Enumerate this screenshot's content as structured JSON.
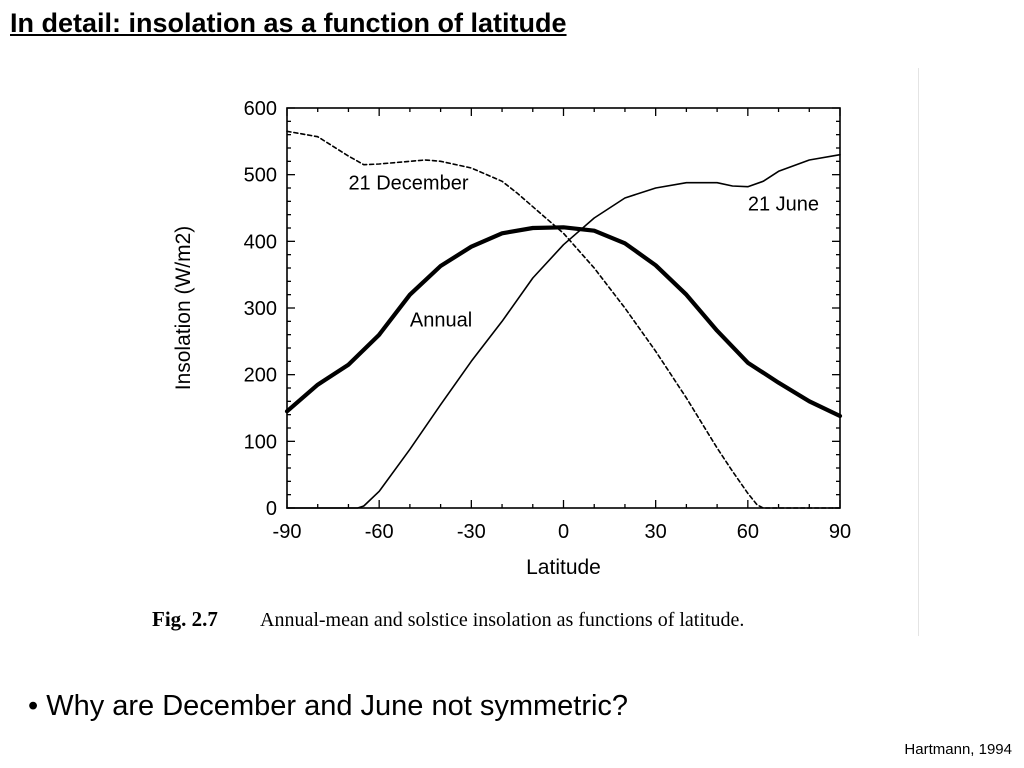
{
  "slide": {
    "title": "In detail: insolation as a function of latitude",
    "bullet": "• Why are December and June not symmetric?",
    "source": "Hartmann, 1994"
  },
  "figure": {
    "caption_label": "Fig. 2.7",
    "caption_text": "Annual-mean and solstice insolation as functions of latitude."
  },
  "chart_data": {
    "type": "line",
    "title": "",
    "xlabel": "Latitude",
    "ylabel": "Insolation (W/m2)",
    "xlim": [
      -90,
      90
    ],
    "ylim": [
      0,
      600
    ],
    "xticks": [
      -90,
      -60,
      -30,
      0,
      30,
      60,
      90
    ],
    "yticks": [
      0,
      100,
      200,
      300,
      400,
      500,
      600
    ],
    "grid": false,
    "legend": "none",
    "series": [
      {
        "name": "21 December",
        "style": "dashed",
        "x": [
          -90,
          -80,
          -70,
          -65,
          -60,
          -50,
          -45,
          -40,
          -30,
          -20,
          -15,
          -10,
          0,
          10,
          20,
          30,
          40,
          50,
          55,
          60,
          63,
          65,
          70,
          80,
          90
        ],
        "y": [
          565,
          557,
          528,
          515,
          516,
          520,
          522,
          520,
          510,
          490,
          472,
          452,
          412,
          360,
          300,
          235,
          165,
          90,
          55,
          22,
          5,
          0,
          0,
          0,
          0
        ]
      },
      {
        "name": "21 June",
        "style": "solid-thin",
        "x": [
          -90,
          -80,
          -70,
          -67,
          -65,
          -60,
          -50,
          -40,
          -30,
          -20,
          -10,
          0,
          10,
          20,
          30,
          40,
          50,
          55,
          60,
          65,
          70,
          80,
          90
        ],
        "y": [
          0,
          0,
          0,
          0,
          3,
          25,
          88,
          155,
          220,
          280,
          345,
          395,
          435,
          465,
          480,
          488,
          488,
          483,
          482,
          490,
          505,
          522,
          530
        ]
      },
      {
        "name": "Annual",
        "style": "solid-thick",
        "x": [
          -90,
          -80,
          -70,
          -60,
          -50,
          -40,
          -30,
          -20,
          -10,
          0,
          10,
          20,
          30,
          40,
          50,
          60,
          70,
          80,
          90
        ],
        "y": [
          145,
          185,
          215,
          260,
          320,
          363,
          392,
          412,
          420,
          421,
          416,
          397,
          364,
          320,
          266,
          218,
          188,
          160,
          138
        ]
      }
    ],
    "annotations": [
      {
        "text": "21 December",
        "x": -70,
        "y": 478
      },
      {
        "text": "21 June",
        "x": 60,
        "y": 446
      },
      {
        "text": "Annual",
        "x": -50,
        "y": 272
      }
    ]
  }
}
